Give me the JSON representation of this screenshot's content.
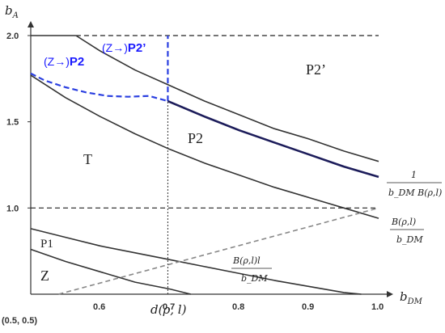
{
  "chart_data": {
    "type": "line",
    "xlabel": "b",
    "xlabel_sub": "DM",
    "ylabel": "b",
    "ylabel_sub": "A",
    "xlim": [
      0.5,
      1.0
    ],
    "ylim": [
      0.5,
      2.0
    ],
    "origin_label": "(0.5, 0.5)",
    "x_ticks": [
      0.6,
      0.7,
      0.8,
      0.9,
      1.0
    ],
    "x_tick_labels": [
      "0.6",
      "0.7",
      "0.8",
      "0.9",
      "1.0"
    ],
    "y_ticks": [
      1.0,
      1.5,
      2.0
    ],
    "y_tick_labels": [
      "1.0",
      "1.5",
      "2.0"
    ],
    "d_rho_l_x": 0.697,
    "d_rho_l_label": "d(ρ, l)",
    "series": [
      {
        "style": "solid-black",
        "points": [
          [
            0.565,
            2.0
          ],
          [
            0.6,
            1.91
          ],
          [
            0.65,
            1.8
          ],
          [
            0.7,
            1.71
          ],
          [
            0.75,
            1.62
          ],
          [
            0.8,
            1.54
          ],
          [
            0.85,
            1.46
          ],
          [
            0.9,
            1.4
          ],
          [
            0.95,
            1.33
          ],
          [
            1.0,
            1.27
          ]
        ]
      },
      {
        "style": "solid-black",
        "points": [
          [
            0.5,
            1.77
          ],
          [
            0.55,
            1.64
          ],
          [
            0.6,
            1.53
          ],
          [
            0.65,
            1.43
          ],
          [
            0.7,
            1.34
          ],
          [
            0.75,
            1.26
          ],
          [
            0.8,
            1.19
          ],
          [
            0.85,
            1.12
          ],
          [
            0.9,
            1.06
          ],
          [
            0.95,
            1.0
          ],
          [
            1.0,
            0.94
          ]
        ]
      },
      {
        "style": "solid-navy",
        "points": [
          [
            0.697,
            1.62
          ],
          [
            0.75,
            1.53
          ],
          [
            0.8,
            1.45
          ],
          [
            0.85,
            1.38
          ],
          [
            0.9,
            1.31
          ],
          [
            0.95,
            1.24
          ],
          [
            1.0,
            1.18
          ]
        ]
      },
      {
        "style": "dashed-blue",
        "points": [
          [
            0.5,
            1.78
          ],
          [
            0.52,
            1.74
          ],
          [
            0.55,
            1.7
          ],
          [
            0.58,
            1.67
          ],
          [
            0.61,
            1.65
          ],
          [
            0.64,
            1.645
          ],
          [
            0.67,
            1.65
          ],
          [
            0.697,
            1.62
          ]
        ]
      },
      {
        "style": "solid-black",
        "points": [
          [
            0.5,
            0.88
          ],
          [
            0.55,
            0.83
          ],
          [
            0.6,
            0.78
          ],
          [
            0.65,
            0.74
          ],
          [
            0.7,
            0.7
          ],
          [
            0.75,
            0.66
          ],
          [
            0.8,
            0.62
          ],
          [
            0.85,
            0.58
          ],
          [
            0.9,
            0.545
          ],
          [
            0.95,
            0.51
          ],
          [
            0.975,
            0.5
          ]
        ]
      },
      {
        "style": "solid-black",
        "points": [
          [
            0.5,
            0.76
          ],
          [
            0.55,
            0.69
          ],
          [
            0.6,
            0.63
          ],
          [
            0.65,
            0.57
          ],
          [
            0.7,
            0.53
          ],
          [
            0.73,
            0.5
          ]
        ]
      },
      {
        "style": "dashed-grey",
        "points": [
          [
            0.54,
            0.5
          ],
          [
            1.0,
            1.0
          ]
        ]
      }
    ],
    "hlines": [
      {
        "y": 2.0,
        "x0": 0.5,
        "x1": 0.565,
        "style": "solid-black"
      },
      {
        "y": 2.0,
        "x0": 0.565,
        "x1": 1.0,
        "style": "dashed-black"
      },
      {
        "y": 1.0,
        "x0": 0.5,
        "x1": 1.0,
        "style": "dashed-black"
      }
    ],
    "vlines": [
      {
        "x": 0.697,
        "y0": 0.5,
        "y1": 1.62,
        "style": "dotted-black"
      },
      {
        "x": 0.697,
        "y0": 1.62,
        "y1": 2.0,
        "style": "dashed-blue"
      }
    ]
  },
  "regions": {
    "t": "T",
    "p2": "P2",
    "p2prime": "P2’",
    "p1": "P1",
    "z": "Z"
  },
  "annotations": {
    "z_to_p2_prefix": "(Z→)",
    "z_to_p2_bold": "P2",
    "z_to_p2prime_prefix": "(Z→)",
    "z_to_p2prime_bold": "P2’",
    "frac_upper_num": "1",
    "frac_upper_den": "b_DM B(ρ,l)",
    "frac_mid_num": "B(ρ,l)",
    "frac_mid_den": "b_DM",
    "frac_low_num": "B(ρ,l)l",
    "frac_low_den": "b_DM"
  }
}
